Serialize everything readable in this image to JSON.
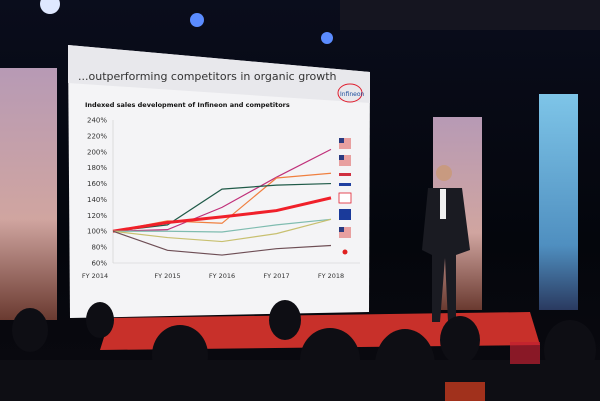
{
  "slide": {
    "headline": "...outperforming competitors in organic growth",
    "logo": "Infineon",
    "subtitle": "Indexed sales development of Infineon and competitors"
  },
  "chart_data": {
    "type": "line",
    "title": "Indexed sales development of Infineon and competitors",
    "x": [
      "FY 2014",
      "FY 2015",
      "FY 2016",
      "FY 2017",
      "FY 2018"
    ],
    "yticks": [
      "60%",
      "80%",
      "100%",
      "120%",
      "140%",
      "160%",
      "180%",
      "200%",
      "220%",
      "240%"
    ],
    "ylim": [
      60,
      240
    ],
    "grid": false,
    "legend": "right (flag icons)",
    "series": [
      {
        "color": "#c0307a",
        "values": [
          100,
          102,
          130,
          168,
          203
        ]
      },
      {
        "color": "#f08040",
        "values": [
          100,
          113,
          110,
          167,
          173
        ]
      },
      {
        "color": "#1f5a48",
        "values": [
          100,
          108,
          153,
          158,
          160
        ]
      },
      {
        "color": "#f0202a",
        "values": [
          100,
          111,
          118,
          126,
          142
        ]
      },
      {
        "color": "#7fbcb0",
        "values": [
          100,
          100,
          99,
          108,
          115
        ]
      },
      {
        "color": "#c8c070",
        "values": [
          100,
          92,
          87,
          97,
          115
        ]
      },
      {
        "color": "#6e4e55",
        "values": [
          100,
          76,
          70,
          78,
          82
        ]
      }
    ],
    "legend_icons": [
      "us-flag",
      "us-flag",
      "red-bar",
      "blue-bar",
      "infineon-logo",
      "eu-flag",
      "us-flag",
      "japan-dot"
    ]
  }
}
